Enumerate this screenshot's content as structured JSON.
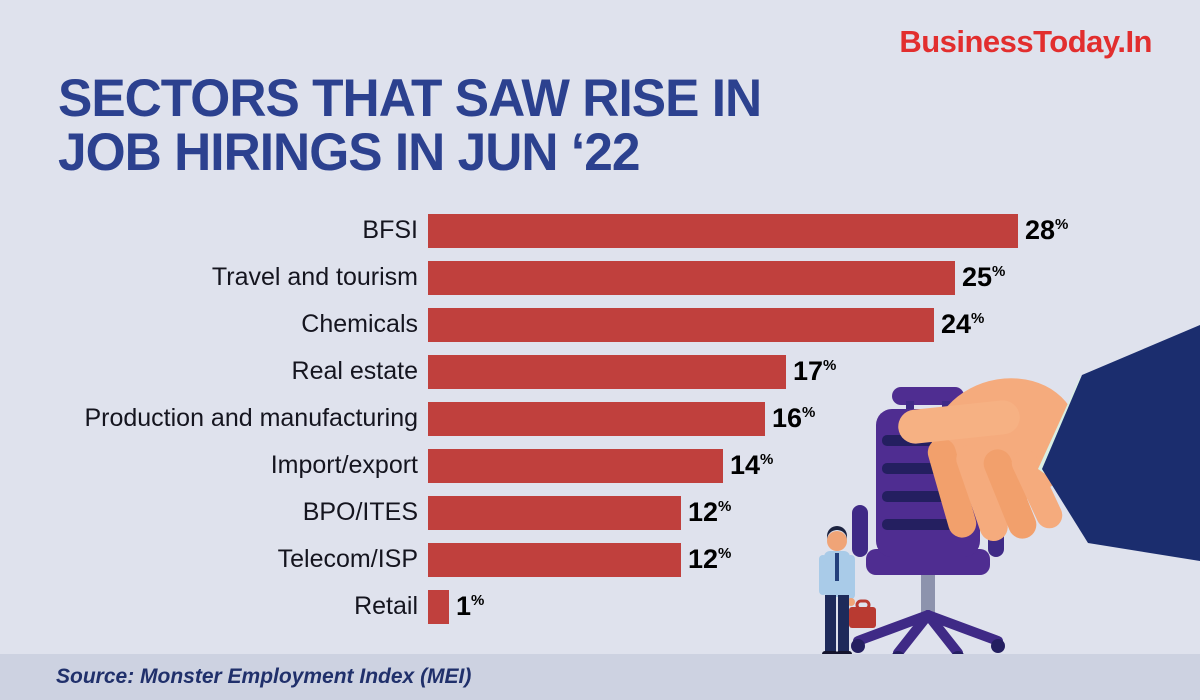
{
  "brand": {
    "name": "BusinessToday.In",
    "color": "#e22e2e"
  },
  "title": {
    "line1": "SECTORS THAT SAW RISE IN",
    "line2": "JOB HIRINGS IN JUN ‘22",
    "color": "#2c418f"
  },
  "source_text": "Source: Monster Employment Index (MEI)",
  "colors": {
    "background": "#dfe2ed",
    "footer_strip": "#cdd2e1",
    "bar": "#c0403d",
    "label_text": "#15151f",
    "value_text": "#000000"
  },
  "chart_data": {
    "type": "bar",
    "orientation": "horizontal",
    "title": "Sectors that saw rise in job hirings in Jun ‘22",
    "categories": [
      "BFSI",
      "Travel and tourism",
      "Chemicals",
      "Real estate",
      "Production and manufacturing",
      "Import/export",
      "BPO/ITES",
      "Telecom/ISP",
      "Retail"
    ],
    "values": [
      28,
      25,
      24,
      17,
      16,
      14,
      12,
      12,
      1
    ],
    "unit": "%",
    "xlim": [
      0,
      30
    ],
    "grid": false,
    "legend": false,
    "bar_color": "#c0403d"
  },
  "illustration": {
    "hand_chair": "hand-in-suit-sleeve-holding-purple-office-chair",
    "businessman": "businessman-with-red-briefcase"
  }
}
